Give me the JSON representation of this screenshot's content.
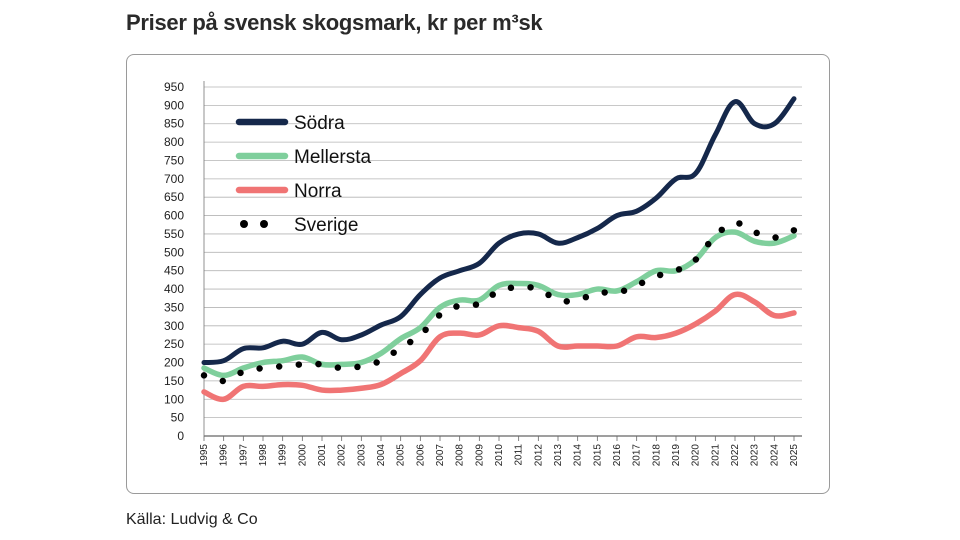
{
  "title": "Priser på svensk skogsmark, kr per m³sk",
  "source": "Källa: Ludvig & Co",
  "chart_data": {
    "type": "line",
    "title": "Priser på svensk skogsmark, kr per m³sk",
    "xlabel": "",
    "ylabel": "",
    "ylim": [
      0,
      950
    ],
    "yticks": [
      0,
      50,
      100,
      150,
      200,
      250,
      300,
      350,
      400,
      450,
      500,
      550,
      600,
      650,
      700,
      750,
      800,
      850,
      900,
      950
    ],
    "x": [
      1995,
      1996,
      1997,
      1998,
      1999,
      2000,
      2001,
      2002,
      2003,
      2004,
      2005,
      2006,
      2007,
      2008,
      2009,
      2010,
      2011,
      2012,
      2013,
      2014,
      2015,
      2016,
      2017,
      2018,
      2019,
      2020,
      2021,
      2022,
      2023,
      2024,
      2025
    ],
    "x_labels": [
      "1995",
      "1996",
      "1997",
      "1998",
      "1999",
      "2000",
      "2001",
      "2002",
      "2003",
      "2004",
      "2005",
      "2006",
      "2007",
      "2008",
      "2009",
      "2010",
      "2011",
      "2012",
      "2013",
      "2014",
      "2015",
      "2016",
      "2017",
      "2018",
      "2019",
      "2020",
      "2021",
      "2022",
      "2023",
      "2024",
      "2025"
    ],
    "grid": true,
    "legend_position": "top-left",
    "series": [
      {
        "name": "Södra",
        "color": "#15284b",
        "style": "solid",
        "values": [
          200,
          205,
          238,
          240,
          258,
          250,
          282,
          262,
          275,
          302,
          325,
          385,
          430,
          450,
          470,
          525,
          550,
          550,
          525,
          540,
          565,
          600,
          612,
          648,
          700,
          715,
          820,
          910,
          850,
          850,
          918
        ]
      },
      {
        "name": "Mellersta",
        "color": "#7fcf9c",
        "style": "solid",
        "values": [
          185,
          165,
          185,
          200,
          205,
          215,
          195,
          195,
          200,
          225,
          265,
          295,
          350,
          370,
          370,
          410,
          415,
          410,
          385,
          385,
          400,
          395,
          420,
          450,
          450,
          480,
          540,
          555,
          530,
          525,
          545
        ]
      },
      {
        "name": "Norra",
        "color": "#f07474",
        "style": "solid",
        "values": [
          120,
          100,
          135,
          135,
          140,
          138,
          125,
          125,
          130,
          140,
          170,
          205,
          270,
          280,
          275,
          300,
          295,
          285,
          245,
          245,
          245,
          245,
          270,
          268,
          280,
          305,
          340,
          385,
          365,
          328,
          335
        ]
      },
      {
        "name": "Sverige",
        "color": "#000000",
        "style": "dotted",
        "values": [
          165,
          150,
          175,
          185,
          190,
          195,
          195,
          185,
          190,
          205,
          240,
          275,
          330,
          355,
          360,
          395,
          405,
          400,
          370,
          370,
          390,
          390,
          410,
          435,
          450,
          480,
          545,
          580,
          555,
          540,
          560
        ]
      }
    ]
  }
}
